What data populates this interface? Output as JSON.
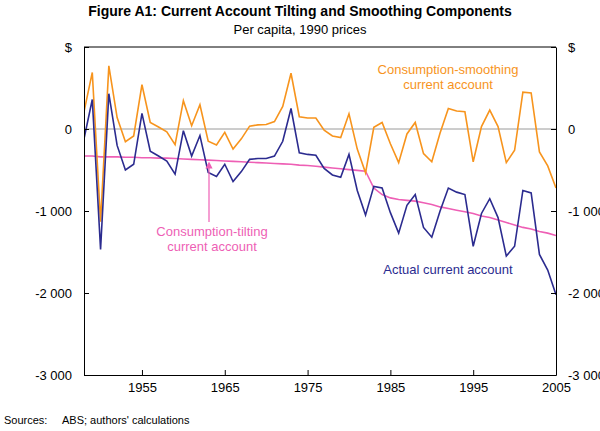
{
  "chart_data": {
    "type": "line",
    "title": "Figure A1: Current Account Tilting and Smoothing Components",
    "subtitle": "Per capita, 1990 prices",
    "source_label": "Sources:",
    "source": "ABS; authors' calculations",
    "x": [
      1948,
      1949,
      1950,
      1951,
      1952,
      1953,
      1954,
      1955,
      1956,
      1957,
      1958,
      1959,
      1960,
      1961,
      1962,
      1963,
      1964,
      1965,
      1966,
      1967,
      1968,
      1969,
      1970,
      1971,
      1972,
      1973,
      1974,
      1975,
      1976,
      1977,
      1978,
      1979,
      1980,
      1981,
      1982,
      1983,
      1984,
      1985,
      1986,
      1987,
      1988,
      1989,
      1990,
      1991,
      1992,
      1993,
      1994,
      1995,
      1996,
      1997,
      1998,
      1999,
      2000,
      2001,
      2002,
      2003,
      2004,
      2005
    ],
    "xlim": [
      1948,
      2005
    ],
    "xticks": [
      1955,
      1965,
      1975,
      1985,
      1995,
      2005
    ],
    "ylim": [
      -3000,
      1000
    ],
    "yticks": [
      {
        "value": -3000,
        "label": "-3 000"
      },
      {
        "value": -2000,
        "label": "-2 000"
      },
      {
        "value": -1000,
        "label": "-1 000"
      },
      0,
      {
        "value": 1000,
        "label": "$"
      }
    ],
    "y2lim": [
      -3000,
      1000
    ],
    "y2ticks": [
      {
        "value": -3000,
        "label": "-3 000"
      },
      {
        "value": -2000,
        "label": "-2 000"
      },
      {
        "value": -1000,
        "label": "-1 000"
      },
      0,
      {
        "value": 1000,
        "label": "$"
      }
    ],
    "grid": false,
    "series": [
      {
        "name": "Consumption-smoothing current account",
        "color": "#f7941d",
        "values": [
          210,
          690,
          -1130,
          770,
          140,
          -155,
          -85,
          540,
          80,
          25,
          -35,
          -190,
          345,
          40,
          295,
          -150,
          -195,
          -40,
          -245,
          -120,
          35,
          50,
          55,
          90,
          275,
          680,
          150,
          135,
          135,
          -15,
          -85,
          -105,
          185,
          -245,
          -535,
          20,
          80,
          -180,
          -410,
          -60,
          80,
          -300,
          -400,
          -50,
          250,
          220,
          210,
          -400,
          30,
          230,
          30,
          -410,
          -260,
          450,
          440,
          -280,
          -450,
          -720
        ]
      },
      {
        "name": "Consumption-tilting current account",
        "color": "#ee5fb5",
        "values": [
          -330,
          -330,
          -340,
          -340,
          -340,
          -345,
          -345,
          -350,
          -350,
          -355,
          -355,
          -360,
          -365,
          -370,
          -375,
          -380,
          -385,
          -390,
          -395,
          -400,
          -405,
          -410,
          -415,
          -420,
          -425,
          -430,
          -440,
          -445,
          -455,
          -465,
          -475,
          -485,
          -495,
          -505,
          -515,
          -720,
          -800,
          -840,
          -860,
          -870,
          -880,
          -900,
          -920,
          -950,
          -970,
          -990,
          -1010,
          -1030,
          -1060,
          -1080,
          -1110,
          -1140,
          -1170,
          -1200,
          -1220,
          -1250,
          -1270,
          -1300
        ]
      },
      {
        "name": "Actual current account",
        "color": "#2b2b8f",
        "values": [
          -120,
          360,
          -1470,
          430,
          -200,
          -500,
          -430,
          190,
          -270,
          -330,
          -390,
          -550,
          -20,
          -330,
          -80,
          -530,
          -580,
          -430,
          -640,
          -520,
          -370,
          -360,
          -360,
          -330,
          -150,
          250,
          -290,
          -310,
          -320,
          -480,
          -560,
          -590,
          -310,
          -750,
          -1050,
          -700,
          -720,
          -1020,
          -1270,
          -930,
          -800,
          -1200,
          -1320,
          -1000,
          -720,
          -770,
          -800,
          -1430,
          -1030,
          -850,
          -1080,
          -1550,
          -1430,
          -750,
          -780,
          -1530,
          -1720,
          -2020
        ]
      }
    ]
  }
}
